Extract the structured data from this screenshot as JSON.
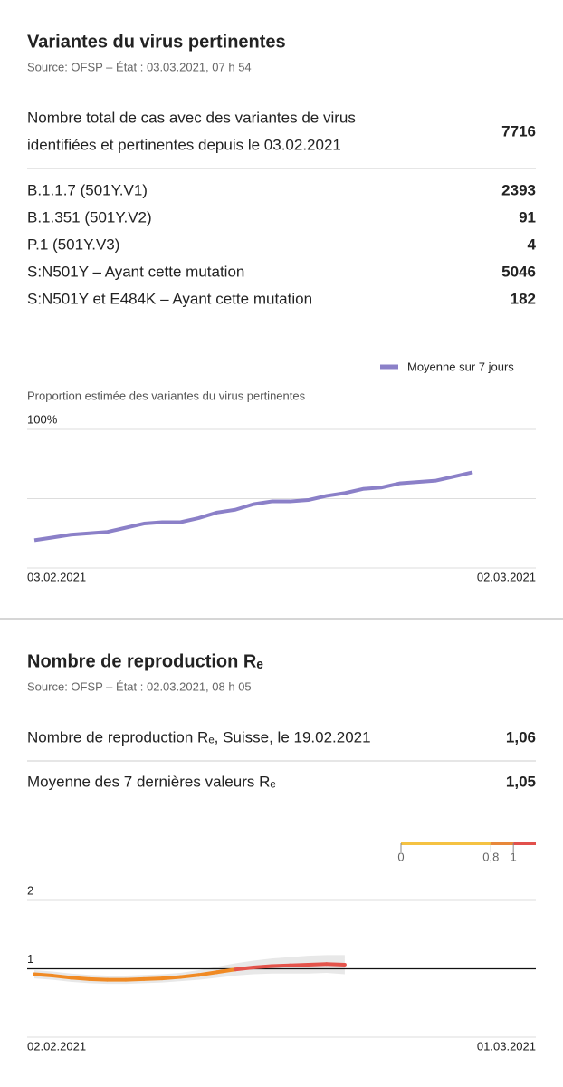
{
  "section1": {
    "title": "Variantes du virus pertinentes",
    "source": "Source: OFSP – État : 03.03.2021, 07 h 54",
    "total": {
      "label_lines": [
        "Nombre total de cas avec des variantes de virus",
        "identifiées et pertinentes depuis le 03.02.2021"
      ],
      "value": 7716
    },
    "rows": [
      {
        "label": "B.1.1.7 (501Y.V1)",
        "value": 2393
      },
      {
        "label": "B.1.351 (501Y.V2)",
        "value": 91
      },
      {
        "label": "P.1 (501Y.V3)",
        "value": 4
      },
      {
        "label": "S:N501Y – Ayant cette mutation",
        "value": 5046
      },
      {
        "label": "S:N501Y et E484K – Ayant cette mutation",
        "value": 182
      }
    ]
  },
  "section2": {
    "title": "Nombre de reproduction Rₑ",
    "source": "Source: OFSP – État : 02.03.2021, 08 h 05",
    "rows": [
      {
        "label": "Nombre de reproduction Rₑ, Suisse, le 19.02.2021",
        "value": "1,06"
      },
      {
        "label": "Moyenne des 7 dernières valeurs Rₑ",
        "value": "1,05"
      }
    ]
  },
  "chart_data": [
    {
      "type": "line",
      "y_label": "Proportion estimée des variantes du virus pertinentes",
      "categories": [
        "03.02.2021",
        null,
        null,
        null,
        null,
        null,
        null,
        null,
        null,
        null,
        null,
        null,
        null,
        null,
        null,
        null,
        null,
        null,
        null,
        null,
        null,
        null,
        null,
        null,
        null,
        null,
        null,
        "02.03.2021"
      ],
      "series": [
        {
          "name": "Moyenne sur 7 jours",
          "color": "#8b80c8",
          "values": [
            20,
            22,
            24,
            25,
            26,
            29,
            32,
            33,
            33,
            36,
            40,
            42,
            46,
            48,
            48,
            49,
            52,
            54,
            57,
            58,
            61,
            62,
            63,
            66,
            69,
            null,
            null,
            null
          ]
        }
      ],
      "ylim": [
        0,
        100
      ],
      "yticks": [
        0,
        50,
        {
          "value": 100,
          "label": "100%"
        }
      ],
      "grid": true,
      "legend": "top-right"
    },
    {
      "type": "band-line",
      "categories": [
        "02.02.2021",
        null,
        null,
        null,
        null,
        null,
        null,
        null,
        null,
        null,
        null,
        null,
        null,
        null,
        null,
        null,
        null,
        null,
        null,
        null,
        null,
        null,
        null,
        null,
        null,
        null,
        null,
        "01.03.2021"
      ],
      "series": [
        {
          "colors": [
            "#f08a24",
            "#e4534b"
          ],
          "values": [
            0.92,
            0.9,
            0.87,
            0.85,
            0.84,
            0.84,
            0.85,
            0.86,
            0.88,
            0.91,
            0.95,
            0.99,
            1.02,
            1.04,
            1.05,
            1.06,
            1.07,
            1.06,
            null,
            null,
            null,
            null,
            null,
            null,
            null,
            null,
            null,
            null
          ]
        }
      ],
      "band": {
        "color": "#e4e4e4",
        "lower": [
          0.86,
          0.84,
          0.81,
          0.79,
          0.78,
          0.78,
          0.79,
          0.8,
          0.82,
          0.84,
          0.87,
          0.9,
          0.92,
          0.93,
          0.93,
          0.93,
          0.94,
          0.92,
          null,
          null,
          null,
          null,
          null,
          null,
          null,
          null,
          null,
          null
        ],
        "upper": [
          0.98,
          0.96,
          0.93,
          0.91,
          0.9,
          0.9,
          0.91,
          0.92,
          0.94,
          0.98,
          1.03,
          1.08,
          1.12,
          1.15,
          1.17,
          1.19,
          1.2,
          1.2,
          null,
          null,
          null,
          null,
          null,
          null,
          null,
          null,
          null,
          null
        ]
      },
      "ylim": [
        0,
        2
      ],
      "yticks": [
        1,
        2
      ],
      "grid": true,
      "reference_line": 1,
      "color_scale": {
        "range": [
          0,
          1.2
        ],
        "ticks": [
          0,
          {
            "value": 0.8,
            "label": "0,8"
          },
          1
        ],
        "colors": [
          "#f5c242",
          "#e8883a",
          "#e2504c"
        ]
      }
    }
  ]
}
